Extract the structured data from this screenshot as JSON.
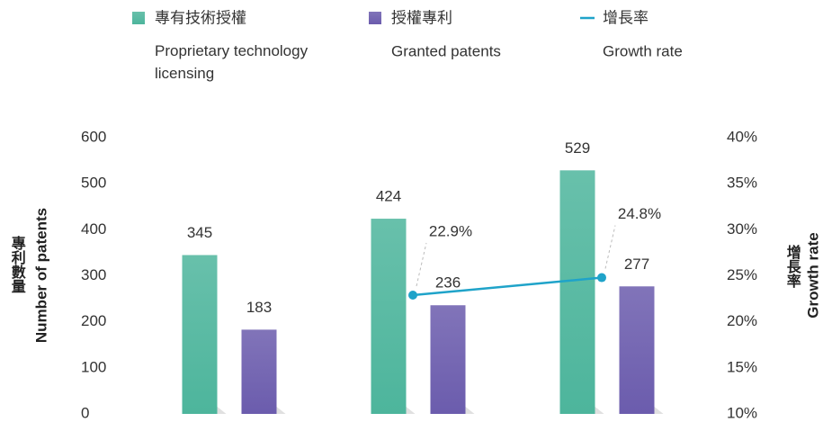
{
  "chart_data": {
    "type": "bar",
    "categories": [
      null,
      null,
      null
    ],
    "series": [
      {
        "name": "專有技術授權",
        "name_en": "Proprietary technology licensing",
        "color": "#4db59c",
        "values": [
          345,
          424,
          529
        ]
      },
      {
        "name": "授權專利",
        "name_en": "Granted patents",
        "color": "#6b5cad",
        "values": [
          183,
          236,
          277
        ]
      },
      {
        "name": "增長率",
        "name_en": "Growth rate",
        "type": "line",
        "axis": "y2",
        "color": "#1fa3c9",
        "values": [
          null,
          22.9,
          24.8
        ],
        "value_labels": [
          null,
          "22.9%",
          "24.8%"
        ]
      }
    ],
    "ylabel": "專利數量",
    "ylabel_en": "Number of patents",
    "y2label": "增長率",
    "y2label_en": "Growth rate",
    "ylim": [
      0,
      600
    ],
    "yticks": [
      0,
      100,
      200,
      300,
      400,
      500,
      600
    ],
    "y2lim": [
      10,
      40
    ],
    "y2ticks": [
      {
        "value": 10,
        "label": "10%"
      },
      {
        "value": 15,
        "label": "15%"
      },
      {
        "value": 20,
        "label": "20%"
      },
      {
        "value": 25,
        "label": "25%"
      },
      {
        "value": 30,
        "label": "30%"
      },
      {
        "value": 35,
        "label": "35%"
      },
      {
        "value": 40,
        "label": "40%"
      }
    ]
  }
}
